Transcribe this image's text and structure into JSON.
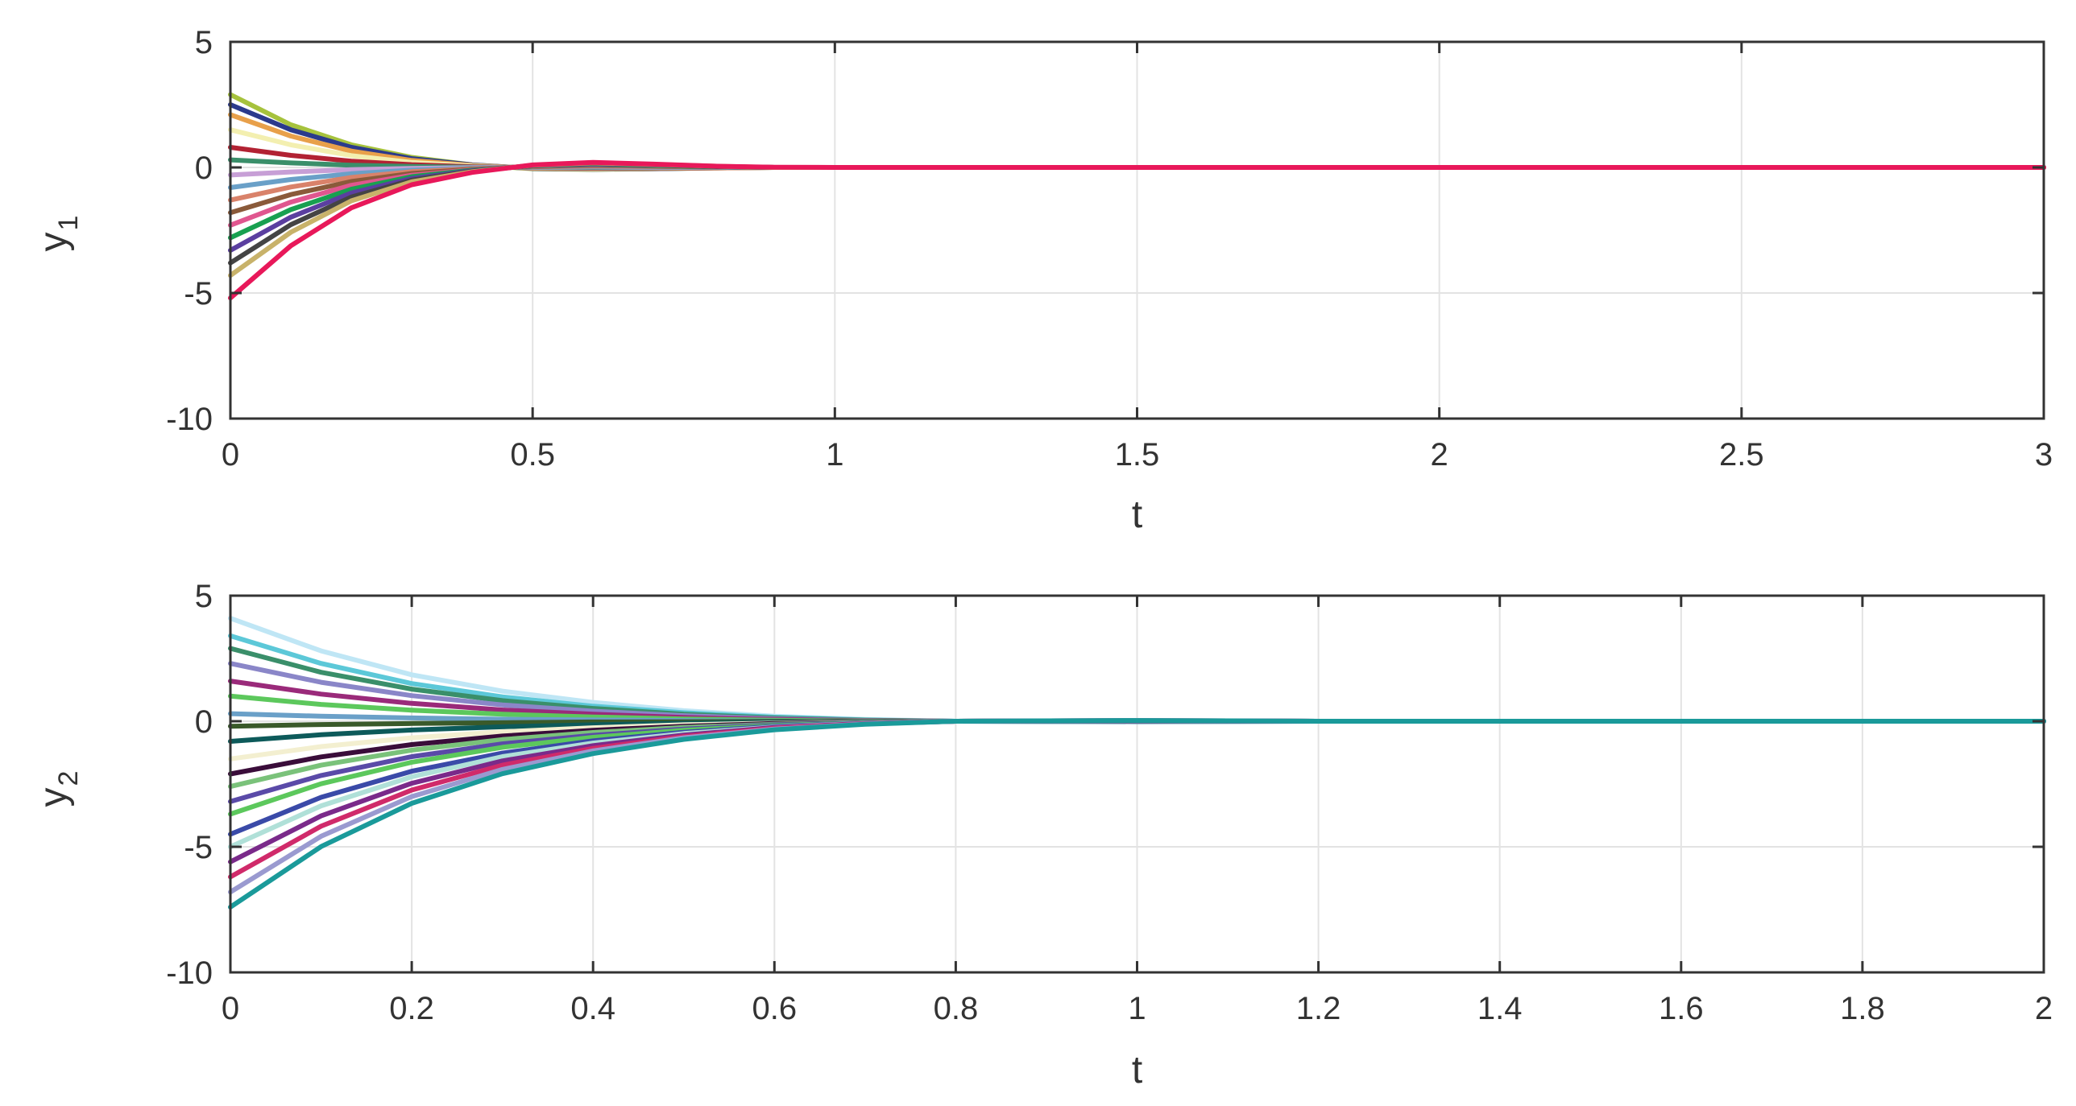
{
  "chart_data": [
    {
      "type": "line",
      "xlabel": "t",
      "ylabel": "y",
      "ylabel_subscript": "1",
      "xlim": [
        0,
        3
      ],
      "ylim": [
        -10,
        5
      ],
      "xticks": [
        0,
        0.5,
        1,
        1.5,
        2,
        2.5,
        3
      ],
      "xtick_labels": [
        "0",
        "0.5",
        "1",
        "1.5",
        "2",
        "2.5",
        "3"
      ],
      "yticks": [
        -10,
        -5,
        0,
        5
      ],
      "ytick_labels": [
        "-10",
        "-5",
        "0",
        "5"
      ],
      "grid": true,
      "x": [
        0,
        0.1,
        0.2,
        0.3,
        0.4,
        0.5,
        0.6,
        0.7,
        0.8,
        0.9,
        1.0,
        1.2,
        1.5,
        2.0,
        2.5,
        3.0
      ],
      "series": [
        {
          "color": "#a6c23c",
          "values": [
            2.9,
            1.7,
            0.9,
            0.4,
            0.1,
            -0.05,
            -0.08,
            -0.05,
            -0.02,
            0,
            0,
            0,
            0,
            0,
            0,
            0
          ]
        },
        {
          "color": "#2b3a8c",
          "values": [
            2.5,
            1.5,
            0.8,
            0.35,
            0.1,
            -0.04,
            -0.07,
            -0.05,
            -0.02,
            0,
            0,
            0,
            0,
            0,
            0,
            0
          ]
        },
        {
          "color": "#e8a04a",
          "values": [
            2.1,
            1.25,
            0.65,
            0.28,
            0.08,
            -0.03,
            -0.06,
            -0.04,
            -0.02,
            0,
            0,
            0,
            0,
            0,
            0,
            0
          ]
        },
        {
          "color": "#f3efb0",
          "values": [
            1.5,
            0.9,
            0.47,
            0.2,
            0.06,
            -0.02,
            -0.05,
            -0.03,
            -0.01,
            0,
            0,
            0,
            0,
            0,
            0,
            0
          ]
        },
        {
          "color": "#b22233",
          "values": [
            0.8,
            0.48,
            0.25,
            0.11,
            0.03,
            -0.01,
            -0.03,
            -0.02,
            -0.01,
            0,
            0,
            0,
            0,
            0,
            0,
            0
          ]
        },
        {
          "color": "#3a8f6a",
          "values": [
            0.3,
            0.18,
            0.09,
            0.04,
            0.01,
            0,
            -0.01,
            -0.01,
            0,
            0,
            0,
            0,
            0,
            0,
            0,
            0
          ]
        },
        {
          "color": "#c79fd6",
          "values": [
            -0.3,
            -0.18,
            -0.09,
            -0.04,
            -0.01,
            0.01,
            0.02,
            0.01,
            0,
            0,
            0,
            0,
            0,
            0,
            0,
            0
          ]
        },
        {
          "color": "#6aa0c8",
          "values": [
            -0.8,
            -0.48,
            -0.25,
            -0.11,
            -0.03,
            0.02,
            0.04,
            0.03,
            0.01,
            0,
            0,
            0,
            0,
            0,
            0,
            0
          ]
        },
        {
          "color": "#d9826a",
          "values": [
            -1.3,
            -0.78,
            -0.4,
            -0.17,
            -0.05,
            0.03,
            0.06,
            0.04,
            0.02,
            0,
            0,
            0,
            0,
            0,
            0,
            0
          ]
        },
        {
          "color": "#8a5a3a",
          "values": [
            -1.8,
            -1.08,
            -0.56,
            -0.24,
            -0.07,
            0.04,
            0.08,
            0.05,
            0.02,
            0,
            0,
            0,
            0,
            0,
            0,
            0
          ]
        },
        {
          "color": "#e0568f",
          "values": [
            -2.3,
            -1.38,
            -0.71,
            -0.31,
            -0.09,
            0.05,
            0.1,
            0.07,
            0.03,
            0,
            0,
            0,
            0,
            0,
            0,
            0
          ]
        },
        {
          "color": "#18a050",
          "values": [
            -2.8,
            -1.68,
            -0.87,
            -0.37,
            -0.11,
            0.06,
            0.12,
            0.08,
            0.03,
            0,
            0,
            0,
            0,
            0,
            0,
            0
          ]
        },
        {
          "color": "#5b3fa0",
          "values": [
            -3.3,
            -1.98,
            -1.02,
            -0.44,
            -0.13,
            0.07,
            0.14,
            0.1,
            0.04,
            0,
            0,
            0,
            0,
            0,
            0,
            0
          ]
        },
        {
          "color": "#444444",
          "values": [
            -3.8,
            -2.28,
            -1.18,
            -0.51,
            -0.15,
            0.08,
            0.16,
            0.11,
            0.04,
            0,
            0,
            0,
            0,
            0,
            0,
            0
          ]
        },
        {
          "color": "#c8b26a",
          "values": [
            -4.3,
            -2.58,
            -1.33,
            -0.57,
            -0.17,
            0.09,
            0.18,
            0.12,
            0.05,
            0,
            0,
            0,
            0,
            0,
            0,
            0
          ]
        },
        {
          "color": "#e8185a",
          "values": [
            -5.2,
            -3.12,
            -1.61,
            -0.69,
            -0.2,
            0.1,
            0.2,
            0.13,
            0.05,
            0.01,
            0,
            0,
            0,
            0,
            0,
            0
          ]
        }
      ]
    },
    {
      "type": "line",
      "xlabel": "t",
      "ylabel": "y",
      "ylabel_subscript": "2",
      "xlim": [
        0,
        2
      ],
      "ylim": [
        -10,
        5
      ],
      "xticks": [
        0,
        0.2,
        0.4,
        0.6,
        0.8,
        1,
        1.2,
        1.4,
        1.6,
        1.8,
        2
      ],
      "xtick_labels": [
        "0",
        "0.2",
        "0.4",
        "0.6",
        "0.8",
        "1",
        "1.2",
        "1.4",
        "1.6",
        "1.8",
        "2"
      ],
      "yticks": [
        -10,
        -5,
        0,
        5
      ],
      "ytick_labels": [
        "-10",
        "-5",
        "0",
        "5"
      ],
      "grid": true,
      "x": [
        0,
        0.1,
        0.2,
        0.3,
        0.4,
        0.5,
        0.6,
        0.7,
        0.8,
        1.0,
        1.2,
        1.4,
        1.6,
        1.8,
        2.0
      ],
      "series": [
        {
          "color": "#bfe6f5",
          "values": [
            4.1,
            2.8,
            1.85,
            1.2,
            0.75,
            0.42,
            0.2,
            0.07,
            0.0,
            -0.02,
            0,
            0,
            0,
            0,
            0
          ]
        },
        {
          "color": "#5cc8d8",
          "values": [
            3.4,
            2.3,
            1.5,
            0.97,
            0.6,
            0.34,
            0.16,
            0.05,
            0.0,
            -0.02,
            0,
            0,
            0,
            0,
            0
          ]
        },
        {
          "color": "#3a8f6a",
          "values": [
            2.9,
            1.95,
            1.28,
            0.82,
            0.51,
            0.28,
            0.13,
            0.04,
            0.0,
            -0.01,
            0,
            0,
            0,
            0,
            0
          ]
        },
        {
          "color": "#8a86c8",
          "values": [
            2.3,
            1.55,
            1.02,
            0.65,
            0.4,
            0.22,
            0.1,
            0.03,
            0.0,
            -0.01,
            0,
            0,
            0,
            0,
            0
          ]
        },
        {
          "color": "#9a2a7a",
          "values": [
            1.6,
            1.08,
            0.71,
            0.45,
            0.28,
            0.15,
            0.07,
            0.02,
            0.0,
            0,
            0,
            0,
            0,
            0,
            0
          ]
        },
        {
          "color": "#5cc85c",
          "values": [
            1.0,
            0.67,
            0.44,
            0.28,
            0.17,
            0.09,
            0.04,
            0.01,
            0.0,
            0,
            0,
            0,
            0,
            0,
            0
          ]
        },
        {
          "color": "#6aa0c8",
          "values": [
            0.3,
            0.2,
            0.13,
            0.08,
            0.05,
            0.03,
            0.01,
            0.0,
            0.0,
            0,
            0,
            0,
            0,
            0,
            0
          ]
        },
        {
          "color": "#3a5a2a",
          "values": [
            -0.2,
            -0.13,
            -0.09,
            -0.06,
            -0.03,
            -0.02,
            -0.01,
            0.0,
            0.0,
            0,
            0,
            0,
            0,
            0,
            0
          ]
        },
        {
          "color": "#0d5a5a",
          "values": [
            -0.8,
            -0.54,
            -0.35,
            -0.22,
            -0.14,
            -0.08,
            -0.04,
            -0.01,
            0.0,
            0,
            0,
            0,
            0,
            0,
            0
          ]
        },
        {
          "color": "#f3efd0",
          "values": [
            -1.5,
            -1.01,
            -0.66,
            -0.42,
            -0.26,
            -0.14,
            -0.07,
            -0.02,
            0.0,
            0.01,
            0,
            0,
            0,
            0,
            0
          ]
        },
        {
          "color": "#3a0d3a",
          "values": [
            -2.1,
            -1.42,
            -0.93,
            -0.59,
            -0.36,
            -0.2,
            -0.09,
            -0.03,
            0.0,
            0.01,
            0,
            0,
            0,
            0,
            0
          ]
        },
        {
          "color": "#7ac27a",
          "values": [
            -2.6,
            -1.75,
            -1.15,
            -0.73,
            -0.45,
            -0.25,
            -0.12,
            -0.04,
            0.0,
            0.01,
            0,
            0,
            0,
            0,
            0
          ]
        },
        {
          "color": "#5a4aa8",
          "values": [
            -3.2,
            -2.16,
            -1.41,
            -0.9,
            -0.56,
            -0.31,
            -0.14,
            -0.05,
            0.0,
            0.01,
            0,
            0,
            0,
            0,
            0
          ]
        },
        {
          "color": "#5cc85c",
          "values": [
            -3.7,
            -2.49,
            -1.63,
            -1.04,
            -0.64,
            -0.36,
            -0.17,
            -0.06,
            0.0,
            0.02,
            0,
            0,
            0,
            0,
            0
          ]
        },
        {
          "color": "#3a4aa8",
          "values": [
            -4.5,
            -3.03,
            -1.99,
            -1.27,
            -0.78,
            -0.44,
            -0.2,
            -0.07,
            0.0,
            0.02,
            0,
            0,
            0,
            0,
            0
          ]
        },
        {
          "color": "#b0e0d8",
          "values": [
            -5.0,
            -3.37,
            -2.21,
            -1.41,
            -0.87,
            -0.49,
            -0.23,
            -0.08,
            0.0,
            0.02,
            0,
            0,
            0,
            0,
            0
          ]
        },
        {
          "color": "#7a2a8a",
          "values": [
            -5.6,
            -3.77,
            -2.47,
            -1.58,
            -0.97,
            -0.55,
            -0.25,
            -0.09,
            0.0,
            0.02,
            0,
            0,
            0,
            0,
            0
          ]
        },
        {
          "color": "#d02a6a",
          "values": [
            -6.2,
            -4.18,
            -2.74,
            -1.75,
            -1.08,
            -0.61,
            -0.28,
            -0.1,
            0.0,
            0.03,
            0,
            0,
            0,
            0,
            0
          ]
        },
        {
          "color": "#9a9ad0",
          "values": [
            -6.8,
            -4.58,
            -3.0,
            -1.92,
            -1.18,
            -0.66,
            -0.31,
            -0.11,
            0.0,
            0.03,
            0,
            0,
            0,
            0,
            0
          ]
        },
        {
          "color": "#1a9a9a",
          "values": [
            -7.4,
            -4.99,
            -3.27,
            -2.09,
            -1.29,
            -0.72,
            -0.34,
            -0.12,
            0.0,
            0.03,
            0,
            0,
            0,
            0,
            0
          ]
        }
      ]
    }
  ]
}
